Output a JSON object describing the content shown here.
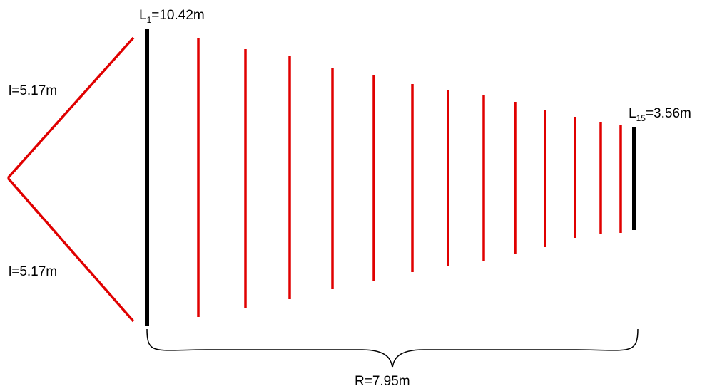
{
  "labels": {
    "l_upper": "l=5.17m",
    "l_lower": "l=5.17m",
    "first": {
      "main": "L",
      "sub": "1",
      "value": "=10.42m"
    },
    "last": {
      "main": "L",
      "sub": "15",
      "value": "=3.56m"
    },
    "radius": "R=7.95m"
  },
  "colors": {
    "element": "#e00000",
    "boom": "#000000",
    "background": "#ffffff"
  },
  "elements": {
    "count": 15
  }
}
